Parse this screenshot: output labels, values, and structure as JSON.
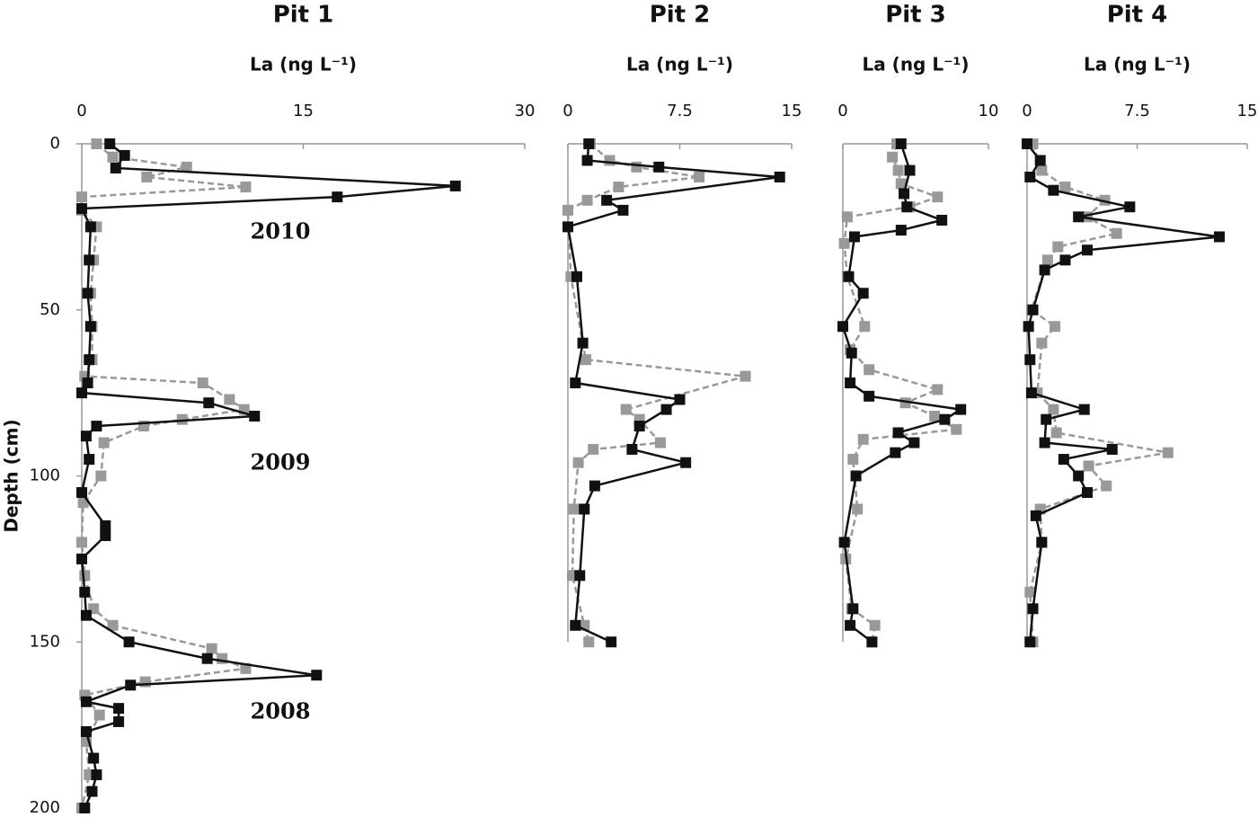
{
  "chart_data": [
    {
      "type": "line",
      "title": "Pit 1",
      "xlabel": "La (ng L⁻¹)",
      "ylabel": "Depth (cm)",
      "xlim": [
        0,
        30
      ],
      "xticks": [
        0,
        15,
        30
      ],
      "ylim": [
        0,
        200
      ],
      "yticks": [
        0,
        50,
        100,
        150,
        200
      ],
      "annotations": [
        "2010",
        "2009",
        "2008"
      ],
      "series": [
        {
          "color": "#111111",
          "dash": false,
          "depth": [
            0,
            3.5,
            7.3,
            12.7,
            16,
            19.5,
            25,
            35,
            45,
            55,
            65,
            72,
            75,
            78,
            82,
            85,
            88,
            95,
            105,
            115,
            118,
            125,
            135,
            142,
            150,
            155,
            160,
            163,
            168,
            170,
            174,
            177,
            185,
            190,
            195,
            200
          ],
          "values": [
            1.9,
            2.9,
            2.3,
            25.3,
            17.3,
            0,
            0.6,
            0.5,
            0.4,
            0.6,
            0.5,
            0.4,
            0,
            8.6,
            11.7,
            1,
            0.3,
            0.5,
            0,
            1.6,
            1.6,
            0,
            0.2,
            0.3,
            3.2,
            8.5,
            15.9,
            3.3,
            0.3,
            2.5,
            2.5,
            0.3,
            0.8,
            1,
            0.7,
            0.2
          ]
        },
        {
          "color": "#999999",
          "dash": true,
          "depth": [
            0,
            4,
            7,
            10,
            13,
            16,
            20,
            25,
            35,
            45,
            55,
            65,
            70,
            72,
            77,
            80,
            83,
            85,
            90,
            100,
            108,
            120,
            130,
            140,
            145,
            152,
            155,
            158,
            162,
            166,
            172,
            180,
            190,
            200
          ],
          "values": [
            1,
            2.1,
            7.1,
            4.4,
            11.1,
            0,
            0,
            1,
            0.8,
            0.6,
            0.7,
            0.7,
            0.2,
            8.2,
            10,
            11,
            6.8,
            4.2,
            1.5,
            1.3,
            0.1,
            0,
            0.2,
            0.8,
            2.1,
            8.8,
            9.5,
            11.1,
            4.3,
            0.2,
            1.2,
            0.3,
            0.5,
            0
          ]
        }
      ]
    },
    {
      "type": "line",
      "title": "Pit 2",
      "xlabel": "La (ng L⁻¹)",
      "xlim": [
        0,
        15
      ],
      "xticks": [
        0,
        7.5,
        15
      ],
      "ylim": [
        0,
        150
      ],
      "series": [
        {
          "color": "#111111",
          "dash": false,
          "depth": [
            0,
            5,
            7,
            10,
            17,
            20,
            25,
            40,
            60,
            72,
            77,
            80,
            85,
            92,
            96,
            103,
            110,
            130,
            145,
            150
          ],
          "values": [
            1.4,
            1.3,
            6.1,
            14.2,
            2.6,
            3.7,
            0,
            0.6,
            1,
            0.5,
            7.5,
            6.6,
            4.8,
            4.3,
            7.9,
            1.8,
            1.1,
            0.8,
            0.5,
            2.9
          ]
        },
        {
          "color": "#999999",
          "dash": true,
          "depth": [
            0,
            5,
            7,
            10,
            13,
            17,
            20,
            40,
            65,
            70,
            80,
            83,
            90,
            92,
            96,
            110,
            130,
            145,
            150
          ],
          "values": [
            1.5,
            2.8,
            4.6,
            8.8,
            3.4,
            1.3,
            0,
            0.2,
            1.2,
            11.9,
            3.9,
            4.8,
            6.2,
            1.7,
            0.7,
            0.4,
            0.3,
            1.1,
            1.4
          ]
        }
      ]
    },
    {
      "type": "line",
      "title": "Pit 3",
      "xlabel": "La (ng L⁻¹)",
      "xlim": [
        0,
        10
      ],
      "xticks": [
        0,
        10
      ],
      "ylim": [
        0,
        150
      ],
      "series": [
        {
          "color": "#111111",
          "dash": false,
          "depth": [
            0,
            8,
            15,
            19,
            23,
            26,
            28,
            40,
            45,
            55,
            63,
            72,
            76,
            80,
            83,
            87,
            90,
            93,
            100,
            120,
            140,
            145,
            150
          ],
          "values": [
            4,
            4.6,
            4.2,
            4.4,
            6.8,
            4,
            0.8,
            0.4,
            1.4,
            0,
            0.6,
            0.5,
            1.8,
            8.1,
            7,
            3.8,
            4.9,
            3.6,
            0.9,
            0.1,
            0.7,
            0.5,
            2
          ]
        },
        {
          "color": "#999999",
          "dash": true,
          "depth": [
            0,
            4,
            8,
            12,
            16,
            19,
            22,
            30,
            40,
            55,
            62,
            68,
            74,
            78,
            82,
            86,
            89,
            95,
            110,
            125,
            140,
            145,
            150
          ],
          "values": [
            3.7,
            3.4,
            3.8,
            4,
            6.5,
            4.6,
            0.3,
            0.1,
            0.3,
            1.5,
            0.5,
            1.8,
            6.5,
            4.3,
            6.3,
            7.8,
            1.4,
            0.7,
            1,
            0.2,
            0.6,
            2.2,
            2
          ]
        }
      ]
    },
    {
      "type": "line",
      "title": "Pit 4",
      "xlabel": "La (ng L⁻¹)",
      "xlim": [
        0,
        15
      ],
      "xticks": [
        0,
        7.5,
        15
      ],
      "ylim": [
        0,
        150
      ],
      "series": [
        {
          "color": "#111111",
          "dash": false,
          "depth": [
            0,
            5,
            10,
            14,
            19,
            22,
            28,
            32,
            35,
            38,
            50,
            55,
            65,
            75,
            80,
            83,
            90,
            92,
            95,
            100,
            105,
            112,
            120,
            140,
            150
          ],
          "values": [
            0,
            0.9,
            0.2,
            1.8,
            7,
            3.5,
            13.1,
            4.1,
            2.6,
            1.2,
            0.4,
            0.1,
            0.2,
            0.3,
            3.9,
            1.3,
            1.2,
            5.8,
            2.5,
            3.5,
            4.1,
            0.6,
            1,
            0.4,
            0.2
          ]
        },
        {
          "color": "#999999",
          "dash": true,
          "depth": [
            0,
            8,
            13,
            17,
            22,
            27,
            31,
            35,
            50,
            55,
            60,
            75,
            80,
            87,
            93,
            97,
            103,
            110,
            120,
            135,
            150
          ],
          "values": [
            0.4,
            1,
            2.6,
            5.3,
            4.1,
            6.1,
            2.1,
            1.4,
            0.3,
            1.9,
            1,
            0.7,
            1.8,
            2,
            9.6,
            4.2,
            5.4,
            0.9,
            1,
            0.2,
            0.4
          ]
        }
      ]
    }
  ]
}
